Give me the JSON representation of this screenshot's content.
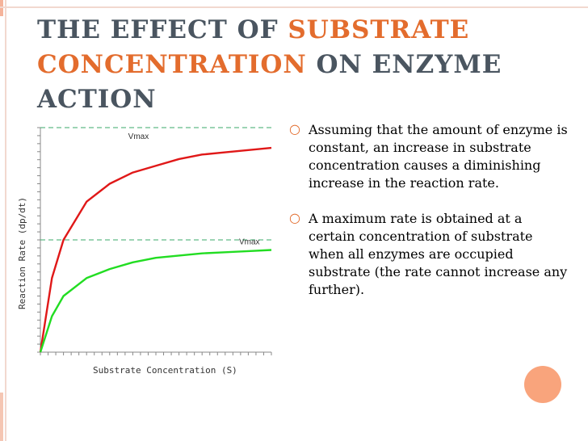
{
  "title": {
    "part1": "THE EFFECT OF ",
    "part2": "SUBSTRATE CONCENTRATION",
    "part3": " ON ENZYME ACTION"
  },
  "colors": {
    "title": "#4a5560",
    "accent": "#e36c2d",
    "red_curve": "#e01818",
    "green_curve": "#22dd22",
    "dashed_lines": "#3aaa6a"
  },
  "bullets": [
    {
      "text": "Assuming that the amount of enzyme is constant, an increase in substrate concentration causes a diminishing increase in the reaction rate."
    },
    {
      "text": "A maximum rate is obtained at a certain concentration of substrate when all enzymes are occupied substrate (the rate cannot increase any further)."
    }
  ],
  "bullet_icon": "hollow-circle-bullet-icon",
  "chart_data": {
    "type": "line",
    "xlabel": "Substrate Concentration (S)",
    "ylabel": "Reaction Rate (dp/dt)",
    "xlim": [
      0,
      100
    ],
    "ylim": [
      0,
      100
    ],
    "annotations": [
      {
        "text": "Vmax",
        "x": 38,
        "y": 95
      },
      {
        "text": "Vmax",
        "x": 86,
        "y": 48
      }
    ],
    "reference_lines": [
      {
        "y": 100,
        "style": "dashed"
      },
      {
        "y": 50,
        "style": "dashed"
      }
    ],
    "series": [
      {
        "color": "red",
        "x": [
          0,
          5,
          10,
          20,
          30,
          40,
          50,
          60,
          70,
          80,
          90,
          100
        ],
        "values": [
          0,
          33,
          50,
          67,
          75,
          80,
          83,
          86,
          88,
          89,
          90,
          91
        ]
      },
      {
        "color": "green",
        "x": [
          0,
          5,
          10,
          20,
          30,
          40,
          50,
          60,
          70,
          80,
          90,
          100
        ],
        "values": [
          0,
          16,
          25,
          33,
          37,
          40,
          42,
          43,
          44,
          44.5,
          45,
          45.5
        ]
      }
    ]
  }
}
